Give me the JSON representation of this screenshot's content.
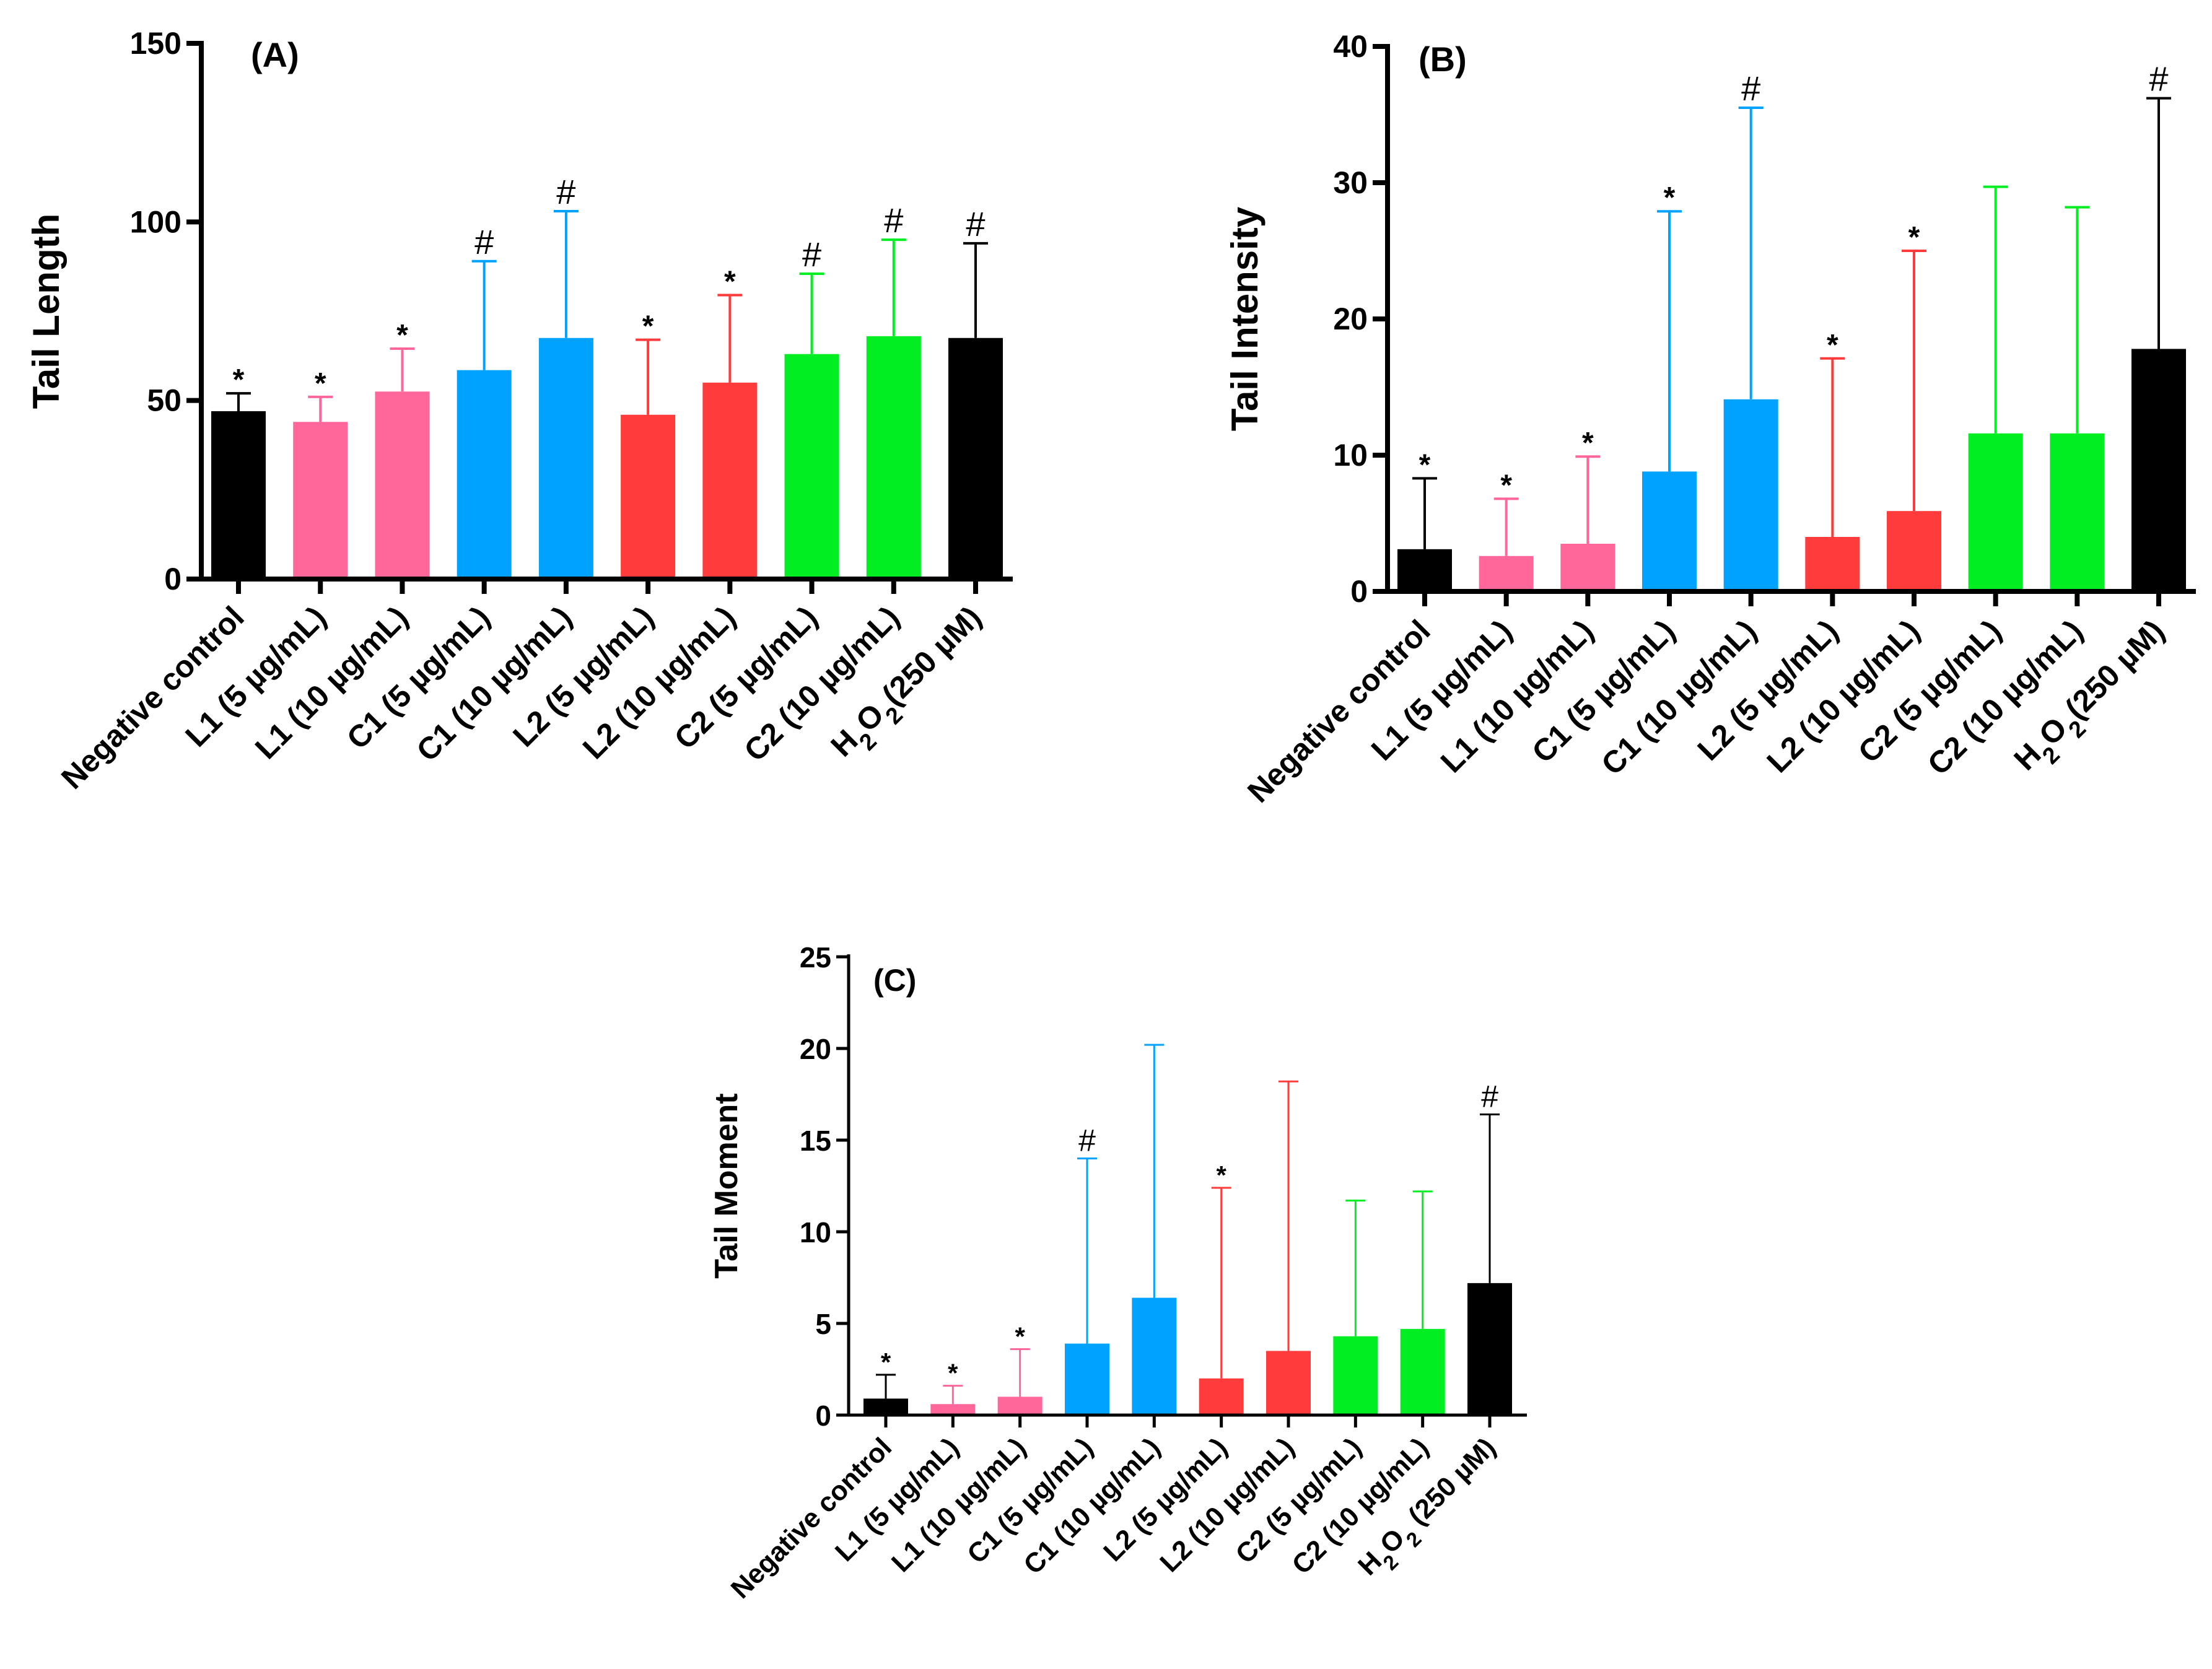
{
  "colors": {
    "black": "#000000",
    "pink": "#ff6699",
    "blue": "#00a2ff",
    "red": "#ff3b3b",
    "green": "#00ee22"
  },
  "chart_data": [
    {
      "type": "bar",
      "panel_label": "(A)",
      "ylabel": "Tail Length",
      "xlabel": "",
      "ylim": [
        0,
        150
      ],
      "yticks": [
        "0",
        "50",
        "100",
        "150"
      ],
      "categories": [
        "Negative control",
        "L1 (5 µg/mL)",
        "L1 (10 µg/mL)",
        "C1 (5 µg/mL)",
        "C1 (10 µg/mL)",
        "L2 (5 µg/mL)",
        "L2 (10 µg/mL)",
        "C2 (5 µg/mL)",
        "C2 (10 µg/mL)",
        "H2O2(250 µM)"
      ],
      "bar_colors": [
        "black",
        "pink",
        "pink",
        "blue",
        "blue",
        "red",
        "red",
        "green",
        "green",
        "black"
      ],
      "values": [
        47,
        44,
        52.5,
        58.5,
        67.5,
        46,
        55,
        63,
        68,
        67.5
      ],
      "errors": [
        5,
        7,
        12,
        30.5,
        35.5,
        21,
        24.5,
        22.5,
        27,
        26.5
      ],
      "annotations": [
        "*",
        "*",
        "*",
        "#",
        "#",
        "*",
        "*",
        "#",
        "#",
        "#"
      ]
    },
    {
      "type": "bar",
      "panel_label": "(B)",
      "ylabel": "Tail Intensity",
      "xlabel": "",
      "ylim": [
        0,
        40
      ],
      "yticks": [
        "0",
        "10",
        "20",
        "30",
        "40"
      ],
      "categories": [
        "Negative control",
        "L1 (5 µg/mL)",
        "L1 (10 µg/mL)",
        "C1 (5 µg/mL)",
        "C1 (10 µg/mL)",
        "L2 (5 µg/mL)",
        "L2 (10 µg/mL)",
        "C2 (5 µg/mL)",
        "C2 (10 µg/mL)",
        "H2O2(250 µM)"
      ],
      "bar_colors": [
        "black",
        "pink",
        "pink",
        "blue",
        "blue",
        "red",
        "red",
        "green",
        "green",
        "black"
      ],
      "values": [
        3.1,
        2.6,
        3.5,
        8.8,
        14.1,
        4,
        5.9,
        11.6,
        11.6,
        17.8
      ],
      "errors": [
        5.2,
        4.2,
        6.4,
        19.1,
        21.4,
        13.1,
        19.1,
        18.1,
        16.6,
        18.4
      ],
      "annotations": [
        "*",
        "*",
        "*",
        "*",
        "#",
        "*",
        "*",
        "",
        "",
        "#"
      ]
    },
    {
      "type": "bar",
      "panel_label": "(C)",
      "ylabel": "Tail Moment",
      "xlabel": "",
      "ylim": [
        0,
        25
      ],
      "yticks": [
        "0",
        "5",
        "10",
        "15",
        "20",
        "25"
      ],
      "categories": [
        "Negative control",
        "L1 (5 µg/mL)",
        "L1 (10 µg/mL)",
        "C1 (5 µg/mL)",
        "C1 (10 µg/mL)",
        "L2 (5 µg/mL)",
        "L2 (10 µg/mL)",
        "C2 (5 µg/mL)",
        "C2 (10 µg/mL)",
        "H2O2 (250 µM)"
      ],
      "bar_colors": [
        "black",
        "pink",
        "pink",
        "blue",
        "blue",
        "red",
        "red",
        "green",
        "green",
        "black"
      ],
      "values": [
        0.9,
        0.6,
        1.0,
        3.9,
        6.4,
        2.0,
        3.5,
        4.3,
        4.7,
        7.2
      ],
      "errors": [
        1.3,
        1.0,
        2.6,
        10.1,
        13.8,
        10.4,
        14.7,
        7.4,
        7.5,
        9.2
      ],
      "annotations": [
        "*",
        "*",
        "*",
        "#",
        "",
        "*",
        "",
        "",
        "",
        "#"
      ]
    }
  ]
}
